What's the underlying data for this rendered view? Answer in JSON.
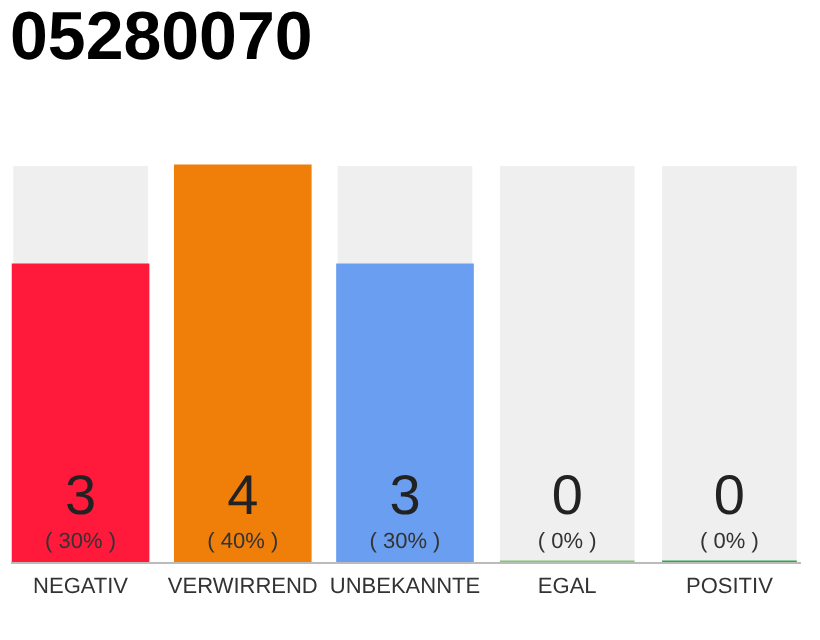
{
  "chart_data": {
    "type": "bar",
    "title": "05280070",
    "categories": [
      "NEGATIV",
      "VERWIRREND",
      "UNBEKANNTE",
      "EGAL",
      "POSITIV"
    ],
    "values": [
      3,
      4,
      3,
      0,
      0
    ],
    "colors": [
      "#ff1a3c",
      "#f07f0a",
      "#6a9ef0",
      "#7ccc6a",
      "#2aa84a"
    ],
    "ylim": [
      0,
      4
    ],
    "data_labels": true,
    "annotations": [
      {
        "text": "( 30% )",
        "x": "NEGATIV",
        "y": 0
      },
      {
        "text": "( 40% )",
        "x": "VERWIRREND",
        "y": 0
      },
      {
        "text": "( 30% )",
        "x": "UNBEKANNTE",
        "y": 0
      },
      {
        "text": "( 0% )",
        "x": "EGAL",
        "y": 0
      },
      {
        "text": "( 0% )",
        "x": "POSITIV",
        "y": 0
      }
    ]
  }
}
